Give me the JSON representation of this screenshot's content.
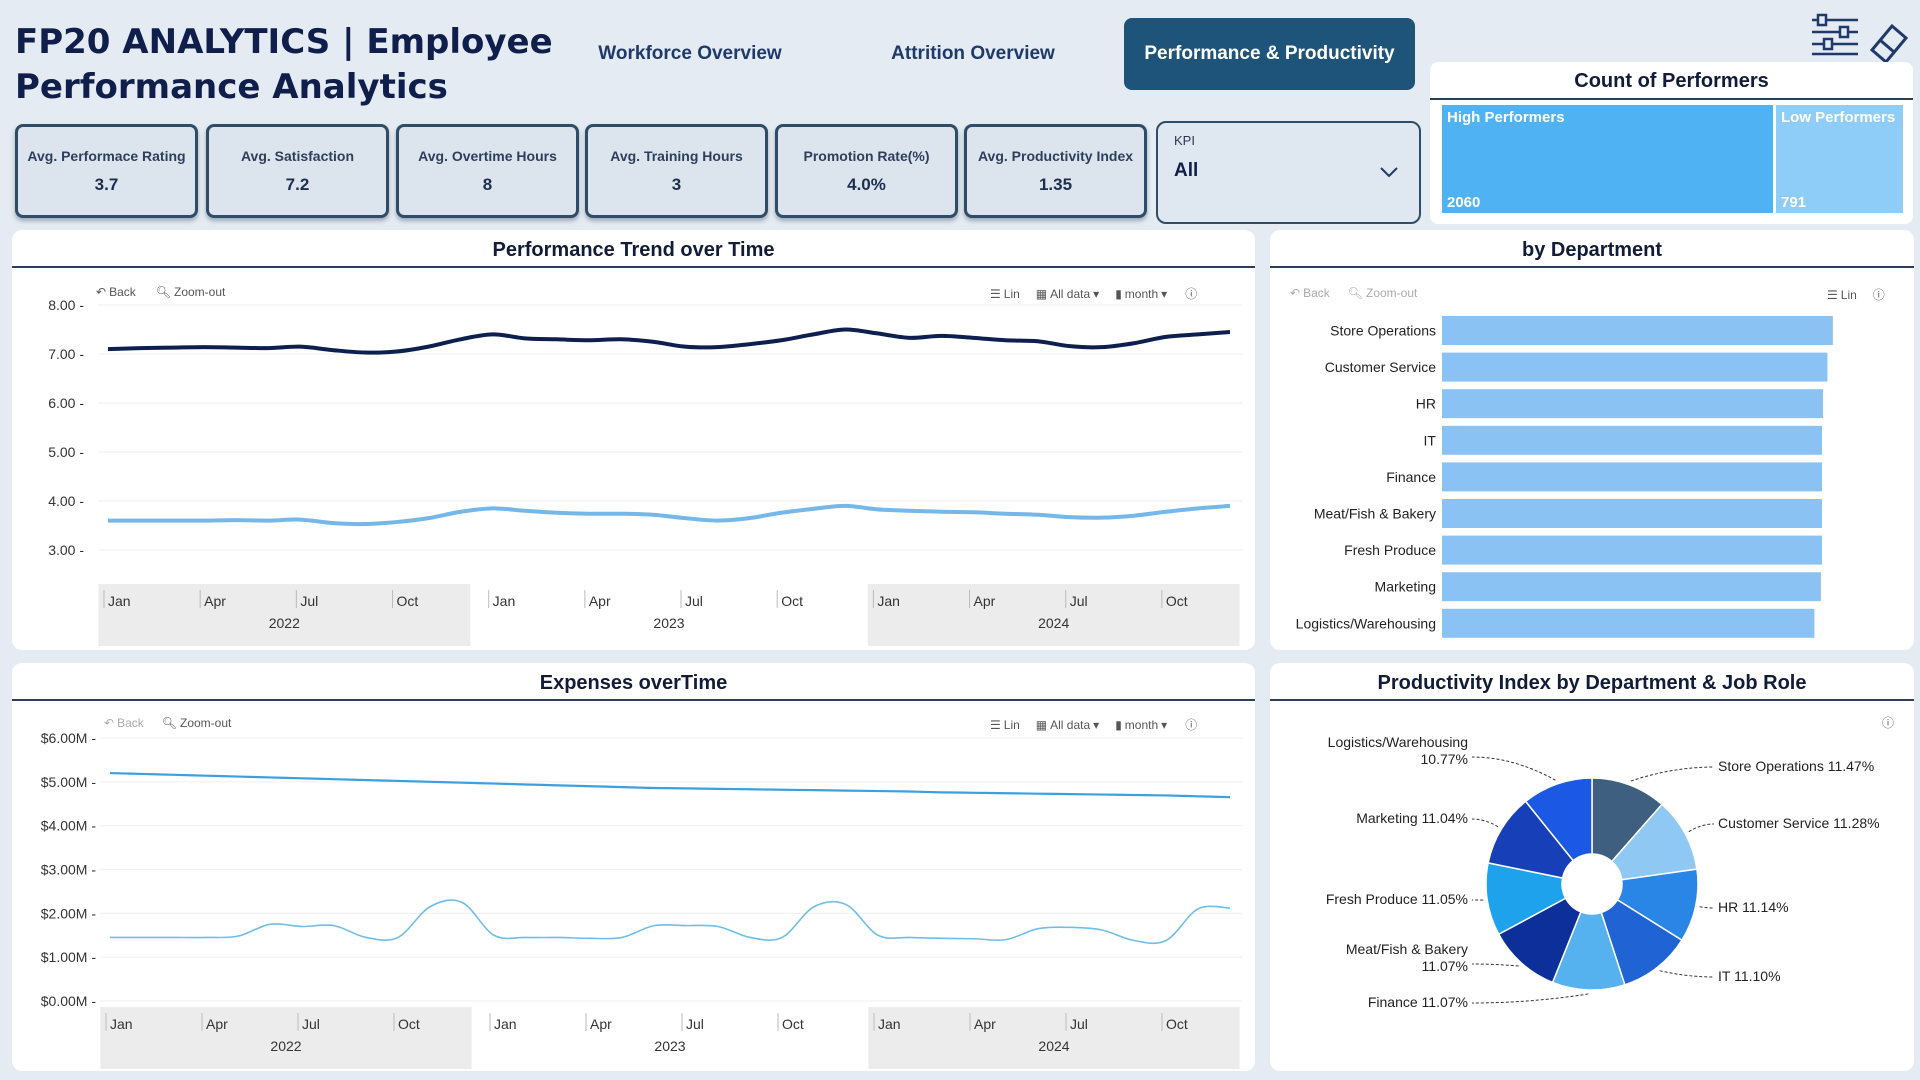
{
  "header": {
    "title": "FP20 ANALYTICS | Employee Performance Analytics",
    "tabs": [
      {
        "label": "Workforce Overview",
        "active": false
      },
      {
        "label": "Attrition Overview",
        "active": false
      },
      {
        "label": "Performance & Productivity",
        "active": true
      }
    ],
    "icons": [
      "filter-sliders-icon",
      "eraser-icon"
    ]
  },
  "kpis": [
    {
      "label": "Avg. Performace Rating",
      "value": "3.7"
    },
    {
      "label": "Avg. Satisfaction",
      "value": "7.2"
    },
    {
      "label": "Avg. Overtime Hours",
      "value": "8"
    },
    {
      "label": "Avg. Training Hours",
      "value": "3"
    },
    {
      "label": "Promotion Rate(%)",
      "value": "4.0%"
    },
    {
      "label": "Avg. Productivity Index",
      "value": "1.35"
    }
  ],
  "slicer": {
    "label": "KPI",
    "value": "All"
  },
  "toolbar": {
    "back": "Back",
    "zoom_out": "Zoom-out",
    "lin": "Lin",
    "all_data": "All data",
    "month": "month"
  },
  "colors": {
    "dark": "#0d1f4f",
    "light": "#74b7e8",
    "bar": "#8ac3f3",
    "tree_high": "#4fb3f3",
    "tree_low": "#8ecdf7"
  },
  "panels": {
    "perf_trend_title": "Performance Trend over Time",
    "by_dept_title": "by Department",
    "expenses_title": "Expenses overTime",
    "pie_title": "Productivity Index by Department & Job Role",
    "performers_title": "Count of Performers"
  },
  "performers": {
    "high_label": "High Performers",
    "high_value": "2060",
    "low_label": "Low Performers",
    "low_value": "791",
    "high_count": 2060,
    "low_count": 791
  },
  "axis": {
    "months": [
      "Jan",
      "Apr",
      "Jul",
      "Oct",
      "Jan",
      "Apr",
      "Jul",
      "Oct",
      "Jan",
      "Apr",
      "Jul",
      "Oct"
    ],
    "years": [
      "2022",
      "2023",
      "2024"
    ]
  },
  "chart_data": [
    {
      "type": "line",
      "title": "Performance Trend over Time",
      "y_ticks": [
        "8.00",
        "7.00",
        "6.00",
        "5.00",
        "4.00",
        "3.00"
      ],
      "ylim": [
        2.5,
        8.0
      ],
      "x": [
        "2022-01",
        "2022-02",
        "2022-03",
        "2022-04",
        "2022-05",
        "2022-06",
        "2022-07",
        "2022-08",
        "2022-09",
        "2022-10",
        "2022-11",
        "2022-12",
        "2023-01",
        "2023-02",
        "2023-03",
        "2023-04",
        "2023-05",
        "2023-06",
        "2023-07",
        "2023-08",
        "2023-09",
        "2023-10",
        "2023-11",
        "2023-12",
        "2024-01",
        "2024-02",
        "2024-03",
        "2024-04",
        "2024-05",
        "2024-06",
        "2024-07",
        "2024-08",
        "2024-09",
        "2024-10",
        "2024-11",
        "2024-12"
      ],
      "series": [
        {
          "values": [
            7.1,
            7.12,
            7.13,
            7.14,
            7.13,
            7.12,
            7.15,
            7.08,
            7.03,
            7.05,
            7.15,
            7.3,
            7.4,
            7.32,
            7.3,
            7.28,
            7.3,
            7.25,
            7.15,
            7.14,
            7.2,
            7.28,
            7.4,
            7.5,
            7.42,
            7.33,
            7.37,
            7.33,
            7.28,
            7.26,
            7.16,
            7.14,
            7.22,
            7.35,
            7.4,
            7.45
          ]
        },
        {
          "values": [
            3.6,
            3.6,
            3.6,
            3.6,
            3.61,
            3.6,
            3.62,
            3.55,
            3.53,
            3.57,
            3.65,
            3.78,
            3.85,
            3.8,
            3.76,
            3.74,
            3.74,
            3.72,
            3.65,
            3.6,
            3.65,
            3.76,
            3.84,
            3.9,
            3.83,
            3.8,
            3.78,
            3.77,
            3.74,
            3.72,
            3.67,
            3.66,
            3.7,
            3.78,
            3.85,
            3.9
          ]
        }
      ]
    },
    {
      "type": "bar",
      "title": "by Department",
      "categories": [
        "Store Operations",
        "Customer Service",
        "HR",
        "IT",
        "Finance",
        "Meat/Fish & Bakery",
        "Fresh Produce",
        "Marketing",
        "Logistics/Warehousing"
      ],
      "values": [
        360,
        355,
        351,
        350,
        350,
        350,
        350,
        349,
        343
      ],
      "xlim": [
        0,
        420
      ]
    },
    {
      "type": "line",
      "title": "Expenses overTime",
      "y_ticks": [
        "$6.00M",
        "$5.00M",
        "$4.00M",
        "$3.00M",
        "$2.00M",
        "$1.00M",
        "$0.00M"
      ],
      "ylim": [
        0,
        6
      ],
      "x": [
        "2022-01",
        "2022-02",
        "2022-03",
        "2022-04",
        "2022-05",
        "2022-06",
        "2022-07",
        "2022-08",
        "2022-09",
        "2022-10",
        "2022-11",
        "2022-12",
        "2023-01",
        "2023-02",
        "2023-03",
        "2023-04",
        "2023-05",
        "2023-06",
        "2023-07",
        "2023-08",
        "2023-09",
        "2023-10",
        "2023-11",
        "2023-12",
        "2024-01",
        "2024-02",
        "2024-03",
        "2024-04",
        "2024-05",
        "2024-06",
        "2024-07",
        "2024-08",
        "2024-09",
        "2024-10",
        "2024-11",
        "2024-12"
      ],
      "series": [
        {
          "values": [
            5.2,
            5.18,
            5.16,
            5.14,
            5.12,
            5.1,
            5.08,
            5.06,
            5.04,
            5.02,
            5.0,
            4.98,
            4.96,
            4.94,
            4.92,
            4.9,
            4.88,
            4.86,
            4.85,
            4.84,
            4.83,
            4.82,
            4.81,
            4.8,
            4.79,
            4.78,
            4.76,
            4.75,
            4.74,
            4.73,
            4.72,
            4.71,
            4.7,
            4.69,
            4.67,
            4.65
          ]
        },
        {
          "values": [
            1.45,
            1.45,
            1.45,
            1.45,
            1.48,
            1.75,
            1.7,
            1.72,
            1.45,
            1.45,
            2.15,
            2.25,
            1.5,
            1.45,
            1.45,
            1.43,
            1.45,
            1.72,
            1.72,
            1.7,
            1.45,
            1.45,
            2.15,
            2.2,
            1.5,
            1.45,
            1.43,
            1.42,
            1.4,
            1.65,
            1.68,
            1.62,
            1.38,
            1.38,
            2.1,
            2.12
          ]
        }
      ]
    },
    {
      "type": "pie",
      "title": "Productivity Index by Department & Job Role",
      "categories": [
        "Store Operations",
        "Customer Service",
        "HR",
        "IT",
        "Finance",
        "Meat/Fish & Bakery",
        "Fresh Produce",
        "Marketing",
        "Logistics/Warehousing"
      ],
      "values": [
        11.47,
        11.28,
        11.14,
        11.1,
        11.07,
        11.07,
        11.05,
        11.04,
        10.77
      ],
      "labels": [
        "Store Operations 11.47%",
        "Customer Service 11.28%",
        "HR 11.14%",
        "IT 11.10%",
        "Finance 11.07%",
        "Meat/Fish & Bakery 11.07%",
        "Fresh Produce 11.05%",
        "Marketing 11.04%",
        "Logistics/Warehousing 10.77%"
      ],
      "colors": [
        "#3f5f80",
        "#8ec8f3",
        "#2a86e6",
        "#1f63d4",
        "#56b1ef",
        "#0c2f9a",
        "#1fa2ec",
        "#163fb8",
        "#1b58e3"
      ]
    }
  ]
}
